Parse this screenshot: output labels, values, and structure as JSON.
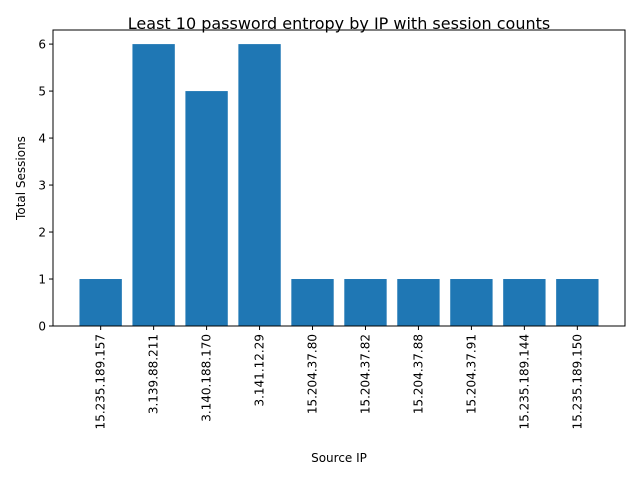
{
  "chart_data": {
    "type": "bar",
    "title": "Least 10 password entropy by IP with session counts",
    "xlabel": "Source IP",
    "ylabel": "Total Sessions",
    "categories": [
      "15.235.189.157",
      "3.139.88.211",
      "3.140.188.170",
      "3.141.12.29",
      "15.204.37.80",
      "15.204.37.82",
      "15.204.37.88",
      "15.204.37.91",
      "15.235.189.144",
      "15.235.189.150"
    ],
    "values": [
      1,
      6,
      5,
      6,
      1,
      1,
      1,
      1,
      1,
      1
    ],
    "ylim": [
      0,
      6.3
    ],
    "yticks": [
      0,
      1,
      2,
      3,
      4,
      5,
      6
    ],
    "grid": false,
    "bar_color": "#1f77b4"
  }
}
